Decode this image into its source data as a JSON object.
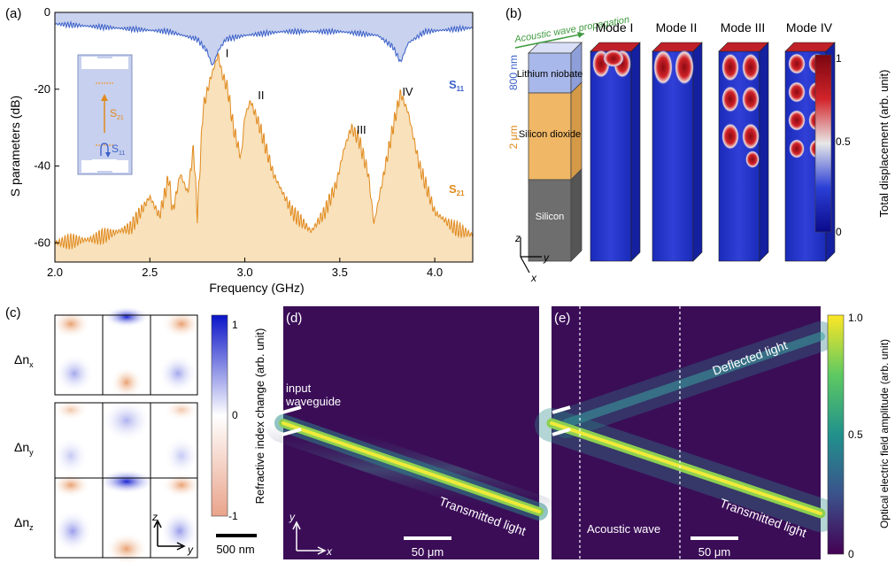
{
  "panel_labels": {
    "a": "(a)",
    "b": "(b)",
    "c": "(c)",
    "d": "(d)",
    "e": "(e)"
  },
  "colors": {
    "s11": "#3a5fc8",
    "s11_fill": "#c9d2ee",
    "s21": "#e08a1e",
    "s21_fill": "#f8e1bb",
    "dark_bg": "#3b0d57",
    "beam": "#c8e040",
    "red": "#b5121b",
    "blue": "#1428b4",
    "gray": "#6e6e6e",
    "oxide": "#f0b766",
    "ln": "#a9b8ea",
    "green": "#3e9a3e"
  },
  "chart_data": [
    {
      "type": "line",
      "title": "",
      "xlabel": "Frequency (GHz)",
      "ylabel": "S parameters (dB)",
      "xlim": [
        2.0,
        4.2
      ],
      "ylim": [
        -65,
        0
      ],
      "xticks": [
        "2.0",
        "2.5",
        "3.0",
        "3.5",
        "4.0"
      ],
      "yticks": [
        "-60",
        "-40",
        "-20",
        "0"
      ],
      "series": [
        {
          "name": "S11",
          "x": [
            2.0,
            2.3,
            2.6,
            2.75,
            2.8,
            2.83,
            2.86,
            2.9,
            3.0,
            3.2,
            3.5,
            3.7,
            3.78,
            3.82,
            3.86,
            3.95,
            4.2
          ],
          "values": [
            -3,
            -4,
            -5,
            -7,
            -10,
            -14,
            -10,
            -7,
            -6,
            -5,
            -5,
            -6,
            -9,
            -13,
            -8,
            -5,
            -4
          ]
        },
        {
          "name": "S21",
          "x": [
            2.0,
            2.2,
            2.4,
            2.5,
            2.55,
            2.6,
            2.62,
            2.66,
            2.7,
            2.73,
            2.75,
            2.78,
            2.82,
            2.86,
            2.88,
            2.91,
            2.94,
            2.98,
            3.0,
            3.03,
            3.08,
            3.15,
            3.25,
            3.35,
            3.42,
            3.48,
            3.52,
            3.56,
            3.6,
            3.65,
            3.68,
            3.72,
            3.78,
            3.82,
            3.86,
            3.92,
            4.0,
            4.1,
            4.2
          ],
          "values": [
            -60,
            -59,
            -56,
            -48,
            -53,
            -43,
            -52,
            -42,
            -47,
            -35,
            -53,
            -25,
            -17,
            -11,
            -16,
            -20,
            -30,
            -38,
            -27,
            -23,
            -30,
            -42,
            -52,
            -57,
            -52,
            -45,
            -36,
            -30,
            -33,
            -42,
            -55,
            -45,
            -30,
            -21,
            -26,
            -40,
            -52,
            -56,
            -58
          ]
        }
      ],
      "annotations": [
        "I",
        "II",
        "III",
        "IV"
      ],
      "legend": [
        "S11",
        "S21"
      ],
      "inset_labels": [
        "S21",
        "S11"
      ]
    },
    {
      "type": "heatmap",
      "title": "",
      "colorbar_label": "Total displacement (arb. unit)",
      "colorbar_ticks": [
        "1",
        "0.5",
        "0"
      ],
      "modes": [
        "Mode I",
        "Mode II",
        "Mode III",
        "Mode IV"
      ],
      "layers": [
        "Lithium niobate",
        "Silicon dioxide",
        "Silicon"
      ],
      "dims": [
        "800 nm",
        "2 μm"
      ],
      "arrow_label": "Acoustic wave propagation",
      "axes": [
        "z",
        "y",
        "x"
      ]
    },
    {
      "type": "heatmap",
      "title": "",
      "rows": [
        "Δn",
        "Δn",
        "Δn"
      ],
      "row_subs": [
        "x",
        "y",
        "z"
      ],
      "colorbar_label": "Refractive index change (arb. unit)",
      "colorbar_ticks": [
        "1",
        "0",
        "-1"
      ],
      "scalebar": "500 nm",
      "axes": [
        "z",
        "y"
      ]
    },
    {
      "type": "heatmap",
      "title": "",
      "labels": [
        "input waveguide",
        "Transmitted light"
      ],
      "scalebar": "50 μm",
      "axes": [
        "y",
        "x"
      ]
    },
    {
      "type": "heatmap",
      "title": "",
      "labels": [
        "Deflected light",
        "Transmitted light",
        "Acoustic wave"
      ],
      "scalebar": "50 μm",
      "colorbar_label": "Optical electric field amplitude (arb. unit)",
      "colorbar_ticks": [
        "1.0",
        "0.5",
        "0"
      ]
    }
  ]
}
